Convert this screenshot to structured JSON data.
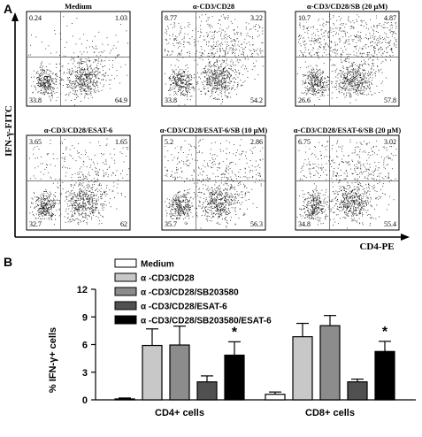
{
  "panel_a_label": "A",
  "panel_b_label": "B",
  "flow_axes": {
    "y_label": "IFN-γ-FITC",
    "x_label": "CD4-PE"
  },
  "dot_plots": [
    {
      "title": "Medium",
      "quadrants": {
        "ul": "0.24",
        "ur": "1.03",
        "ll": "33.8",
        "lr": "64.9"
      }
    },
    {
      "title": "α-CD3/CD28",
      "quadrants": {
        "ul": "8.77",
        "ur": "3.22",
        "ll": "33.8",
        "lr": "54.2"
      }
    },
    {
      "title": "α-CD3/CD28/SB (20 μM)",
      "quadrants": {
        "ul": "10.7",
        "ur": "4.87",
        "ll": "26.6",
        "lr": "57.8"
      }
    },
    {
      "title": "α-CD3/CD28/ESAT-6",
      "quadrants": {
        "ul": "3.65",
        "ur": "1.65",
        "ll": "32.7",
        "lr": "62"
      }
    },
    {
      "title": "α-CD3/CD28/ESAT-6/SB (10 μM)",
      "quadrants": {
        "ul": "5.2",
        "ur": "2.86",
        "ll": "35.7",
        "lr": "56.3"
      }
    },
    {
      "title": "α-CD3/CD28/ESAT-6/SB (20 μM)",
      "quadrants": {
        "ul": "6.75",
        "ur": "3.02",
        "ll": "34.8",
        "lr": "55.4"
      }
    }
  ],
  "chart_data": {
    "type": "bar",
    "categories": [
      "CD4+ cells",
      "CD8+ cells"
    ],
    "ylabel": "% IFN-γ+ cells",
    "ylim": [
      0,
      12
    ],
    "yticks": [
      0,
      3,
      6,
      9,
      12
    ],
    "series": [
      {
        "name": "Medium",
        "color": "#ffffff",
        "values": [
          0.1,
          0.6
        ],
        "errors": [
          0.1,
          0.25
        ]
      },
      {
        "name": "α -CD3/CD28",
        "color": "#c8c8c8",
        "values": [
          5.9,
          6.85
        ],
        "errors": [
          1.8,
          1.45
        ]
      },
      {
        "name": "α -CD3/CD28/SB203580",
        "color": "#8c8c8c",
        "values": [
          5.95,
          8.05
        ],
        "errors": [
          2.05,
          1.1
        ]
      },
      {
        "name": "α -CD3/CD28/ESAT-6",
        "color": "#505050",
        "values": [
          1.95,
          1.95
        ],
        "errors": [
          0.65,
          0.3
        ]
      },
      {
        "name": "α -CD3/CD28/SB203580/ESAT-6",
        "color": "#000000",
        "values": [
          4.85,
          5.25
        ],
        "errors": [
          1.45,
          1.1
        ]
      }
    ],
    "significance": [
      "*",
      "*"
    ]
  }
}
